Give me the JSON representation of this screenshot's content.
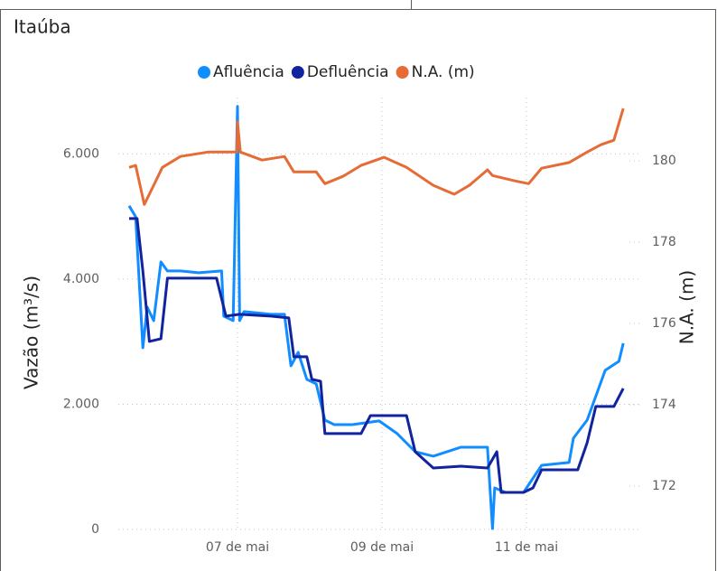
{
  "chart_data": {
    "type": "line",
    "title": "Itaúba",
    "y_label": "Vazão (m³/s)",
    "y2_label": "N.A. (m)",
    "grid": true,
    "legend": "top",
    "xlim": [
      5.35,
      12.55
    ],
    "xticks": [
      {
        "value": 7,
        "label": "07 de mai"
      },
      {
        "value": 9,
        "label": "09 de mai"
      },
      {
        "value": 11,
        "label": "11 de mai"
      }
    ],
    "ylim": [
      0,
      6900
    ],
    "yticks": [
      {
        "value": 0,
        "label": "0"
      },
      {
        "value": 2000,
        "label": "2.000"
      },
      {
        "value": 4000,
        "label": "4.000"
      },
      {
        "value": 6000,
        "label": "6.000"
      }
    ],
    "y2lim": [
      170.93,
      181.56
    ],
    "y2ticks": [
      172,
      174,
      176,
      178,
      180
    ],
    "series": [
      {
        "name": "Afluência",
        "color": "#118dff",
        "x": [
          5.5,
          5.59,
          5.69,
          5.75,
          5.84,
          5.94,
          6.03,
          6.21,
          6.46,
          6.78,
          6.81,
          6.94,
          7.0,
          7.03,
          7.09,
          7.46,
          7.65,
          7.74,
          7.84,
          7.96,
          8.09,
          8.21,
          8.34,
          8.59,
          8.96,
          9.21,
          9.46,
          9.71,
          10.09,
          10.46,
          10.53,
          10.56,
          10.71,
          10.96,
          11.21,
          11.59,
          11.65,
          11.84,
          12.09,
          12.28,
          12.34
        ],
        "values": [
          5170,
          4996,
          2903,
          3552,
          3336,
          4274,
          4130,
          4130,
          4101,
          4130,
          3408,
          3336,
          6758,
          3336,
          3480,
          3437,
          3437,
          2614,
          2830,
          2397,
          2325,
          1747,
          1675,
          1675,
          1733,
          1531,
          1242,
          1170,
          1314,
          1314,
          14,
          664,
          592,
          592,
          1025,
          1069,
          1458,
          1747,
          2542,
          2686,
          2975
        ]
      },
      {
        "name": "Defluência",
        "color": "#12239e",
        "x": [
          5.5,
          5.61,
          5.69,
          5.78,
          5.94,
          6.03,
          6.71,
          6.84,
          7.03,
          7.46,
          7.71,
          7.78,
          7.96,
          8.03,
          8.15,
          8.21,
          8.71,
          8.84,
          9.34,
          9.46,
          9.71,
          10.09,
          10.46,
          10.59,
          10.65,
          10.96,
          11.09,
          11.21,
          11.71,
          11.84,
          11.96,
          12.21,
          12.34
        ],
        "values": [
          4967,
          4967,
          4130,
          3004,
          3047,
          4014,
          4014,
          3408,
          3437,
          3408,
          3379,
          2758,
          2758,
          2397,
          2368,
          1531,
          1531,
          1819,
          1819,
          1242,
          982,
          1011,
          982,
          1242,
          592,
          592,
          664,
          953,
          953,
          1386,
          1964,
          1964,
          2253
        ]
      },
      {
        "name": "N.A. (m)",
        "color": "#e66c37",
        "axis": "y2",
        "x": [
          5.5,
          5.59,
          5.71,
          5.84,
          5.96,
          6.21,
          6.59,
          6.99,
          7.0,
          7.04,
          7.34,
          7.65,
          7.78,
          8.09,
          8.21,
          8.46,
          8.71,
          9.03,
          9.34,
          9.71,
          10.0,
          10.21,
          10.46,
          10.53,
          10.84,
          11.03,
          11.21,
          11.59,
          11.84,
          12.03,
          12.21,
          12.34
        ],
        "values": [
          179.84,
          179.89,
          178.93,
          179.4,
          179.84,
          180.11,
          180.22,
          180.22,
          180.96,
          180.22,
          180.02,
          180.11,
          179.73,
          179.73,
          179.44,
          179.62,
          179.89,
          180.09,
          179.84,
          179.4,
          179.18,
          179.4,
          179.78,
          179.64,
          179.51,
          179.44,
          179.82,
          179.96,
          180.22,
          180.4,
          180.51,
          181.29
        ]
      }
    ]
  }
}
